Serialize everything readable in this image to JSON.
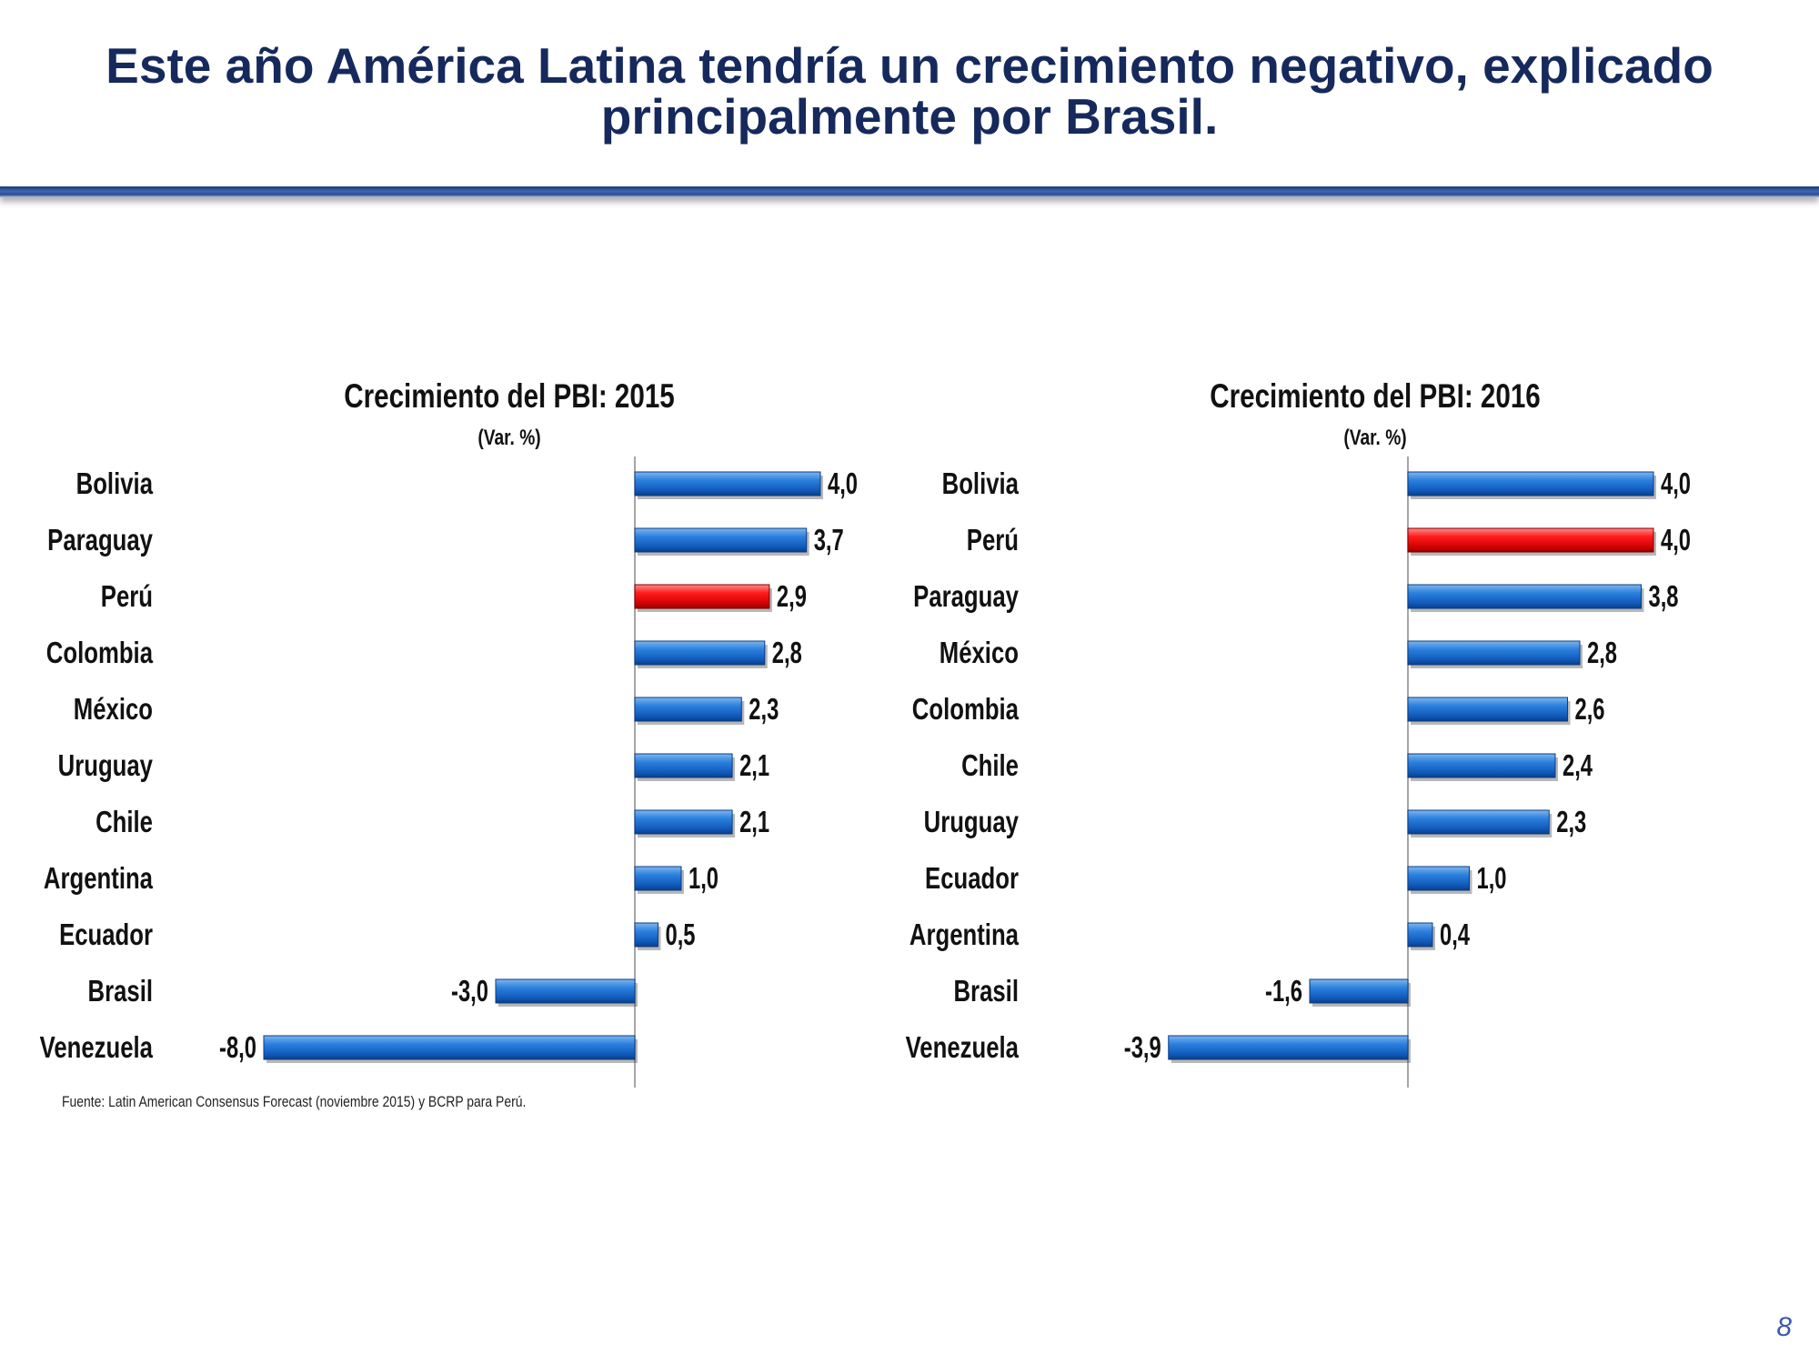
{
  "title": "Este año América Latina tendría un crecimiento negativo, explicado principalmente por Brasil.",
  "footnote": "Fuente: Latin American Consensus Forecast (noviembre 2015) y BCRP para Perú.",
  "page_number": "8",
  "colors": {
    "title": "#16295c",
    "bar_blue": "#1d6fd4",
    "bar_highlight": "#ee1111",
    "axis": "#888888"
  },
  "chart_data": [
    {
      "type": "bar",
      "orientation": "horizontal",
      "title": "Crecimiento del PBI: 2015",
      "subtitle": "(Var. %)",
      "categories": [
        "Bolivia",
        "Paraguay",
        "Perú",
        "Colombia",
        "México",
        "Uruguay",
        "Chile",
        "Argentina",
        "Ecuador",
        "Brasil",
        "Venezuela"
      ],
      "values": [
        4.0,
        3.7,
        2.9,
        2.8,
        2.3,
        2.1,
        2.1,
        1.0,
        0.5,
        -3.0,
        -8.0
      ],
      "value_labels": [
        "4,0",
        "3,7",
        "2,9",
        "2,8",
        "2,3",
        "2,1",
        "2,1",
        "1,0",
        "0,5",
        "-3,0",
        "-8,0"
      ],
      "highlight": "Perú",
      "xlim": [
        -8,
        4
      ]
    },
    {
      "type": "bar",
      "orientation": "horizontal",
      "title": "Crecimiento del PBI: 2016",
      "subtitle": "(Var. %)",
      "categories": [
        "Bolivia",
        "Perú",
        "Paraguay",
        "México",
        "Colombia",
        "Chile",
        "Uruguay",
        "Ecuador",
        "Argentina",
        "Brasil",
        "Venezuela"
      ],
      "values": [
        4.0,
        4.0,
        3.8,
        2.8,
        2.6,
        2.4,
        2.3,
        1.0,
        0.4,
        -1.6,
        -3.9
      ],
      "value_labels": [
        "4,0",
        "4,0",
        "3,8",
        "2,8",
        "2,6",
        "2,4",
        "2,3",
        "1,0",
        "0,4",
        "-1,6",
        "-3,9"
      ],
      "highlight": "Perú",
      "xlim": [
        -3.9,
        4
      ]
    }
  ]
}
